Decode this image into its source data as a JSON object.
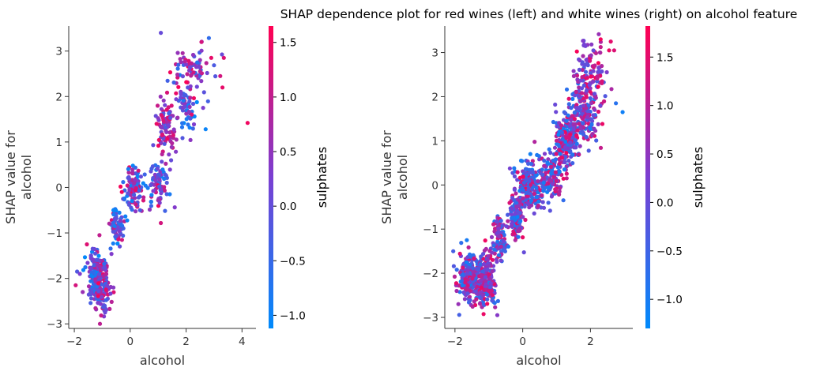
{
  "title": "SHAP dependence plot for red wines (left) and white wines (right) on alcohol feature",
  "colors": {
    "low": "#008afb",
    "mid": "#7a3fd2",
    "high": "#ff0052",
    "axis": "#333333"
  },
  "chart_data": [
    {
      "type": "scatter",
      "name": "red-wines",
      "xlabel": "alcohol",
      "ylabel": "SHAP value for\nalcohol",
      "xlim": [
        -2.2,
        4.5
      ],
      "ylim": [
        -3.1,
        3.55
      ],
      "xticks": [
        -2,
        0,
        2,
        4
      ],
      "yticks": [
        -3,
        -2,
        -1,
        0,
        1,
        2,
        3
      ],
      "colorbar": {
        "label": "sulphates",
        "range": [
          -1.12,
          1.65
        ],
        "ticks": [
          -1.0,
          -0.5,
          0.0,
          0.5,
          1.0,
          1.5
        ]
      },
      "clusters": [
        {
          "x": -1.25,
          "xs": 0.13,
          "y": -2.0,
          "ys": 0.32,
          "n": 150,
          "cMin": -1.1,
          "cMax": 1.1
        },
        {
          "x": -0.95,
          "xs": 0.12,
          "y": -2.15,
          "ys": 0.3,
          "n": 90,
          "cMin": -0.6,
          "cMax": 1.6
        },
        {
          "x": -0.5,
          "xs": 0.12,
          "y": -0.85,
          "ys": 0.22,
          "n": 70,
          "cMin": -1.1,
          "cMax": 1.3
        },
        {
          "x": 0.1,
          "xs": 0.18,
          "y": 0.0,
          "ys": 0.25,
          "n": 110,
          "cMin": -1.1,
          "cMax": 1.6
        },
        {
          "x": 0.95,
          "xs": 0.22,
          "y": 0.15,
          "ys": 0.28,
          "n": 80,
          "cMin": -1.1,
          "cMax": 1.6
        },
        {
          "x": 1.3,
          "xs": 0.18,
          "y": 1.35,
          "ys": 0.3,
          "n": 90,
          "cMin": -0.3,
          "cMax": 1.6
        },
        {
          "x": 2.0,
          "xs": 0.2,
          "y": 1.75,
          "ys": 0.25,
          "n": 50,
          "cMin": -1.1,
          "cMax": 1.0
        },
        {
          "x": 2.2,
          "xs": 0.35,
          "y": 2.5,
          "ys": 0.35,
          "n": 80,
          "cMin": -0.8,
          "cMax": 1.6
        }
      ],
      "points": [
        [
          -1.9,
          -1.85,
          -0.2
        ],
        [
          -1.8,
          -1.9,
          0.3
        ],
        [
          -1.95,
          -2.15,
          1.2
        ],
        [
          -1.7,
          -2.3,
          0.6
        ],
        [
          -1.55,
          -1.25,
          1.3
        ],
        [
          -1.1,
          -1.05,
          1.0
        ],
        [
          -0.9,
          -2.75,
          0.1
        ],
        [
          -0.6,
          -2.2,
          0.4
        ],
        [
          4.2,
          1.42,
          1.5
        ],
        [
          3.35,
          2.85,
          1.3
        ],
        [
          3.3,
          2.2,
          1.4
        ],
        [
          2.9,
          2.85,
          1.4
        ],
        [
          2.55,
          3.2,
          1.2
        ],
        [
          2.7,
          1.28,
          -1.0
        ],
        [
          -0.3,
          -0.1,
          1.5
        ],
        [
          -0.6,
          -0.5,
          -1.0
        ]
      ]
    },
    {
      "type": "scatter",
      "name": "white-wines",
      "xlabel": "alcohol",
      "ylabel": "SHAP value for\nalcohol",
      "xlim": [
        -2.3,
        3.25
      ],
      "ylim": [
        -3.25,
        3.6
      ],
      "xticks": [
        -2,
        0,
        2
      ],
      "yticks": [
        -3,
        -2,
        -1,
        0,
        1,
        2,
        3
      ],
      "colorbar": {
        "label": "sulphates",
        "range": [
          -1.3,
          1.82
        ],
        "ticks": [
          -1.0,
          -0.5,
          0.0,
          0.5,
          1.0,
          1.5
        ]
      },
      "clusters": [
        {
          "x": -1.55,
          "xs": 0.18,
          "y": -2.1,
          "ys": 0.28,
          "n": 280,
          "cMin": -1.2,
          "cMax": 1.6
        },
        {
          "x": -1.05,
          "xs": 0.12,
          "y": -2.2,
          "ys": 0.3,
          "n": 160,
          "cMin": -0.9,
          "cMax": 1.7
        },
        {
          "x": -0.7,
          "xs": 0.1,
          "y": -1.25,
          "ys": 0.25,
          "n": 90,
          "cMin": -1.2,
          "cMax": 1.6
        },
        {
          "x": -0.2,
          "xs": 0.12,
          "y": -0.75,
          "ys": 0.22,
          "n": 120,
          "cMin": -1.2,
          "cMax": 1.6
        },
        {
          "x": 0.15,
          "xs": 0.22,
          "y": -0.05,
          "ys": 0.28,
          "n": 200,
          "cMin": -1.2,
          "cMax": 1.7
        },
        {
          "x": 0.8,
          "xs": 0.18,
          "y": 0.15,
          "ys": 0.25,
          "n": 130,
          "cMin": -1.2,
          "cMax": 1.7
        },
        {
          "x": 1.25,
          "xs": 0.18,
          "y": 0.95,
          "ys": 0.32,
          "n": 170,
          "cMin": -1.2,
          "cMax": 1.7
        },
        {
          "x": 1.8,
          "xs": 0.22,
          "y": 1.55,
          "ys": 0.3,
          "n": 170,
          "cMin": -1.2,
          "cMax": 1.6
        },
        {
          "x": 2.0,
          "xs": 0.25,
          "y": 2.55,
          "ys": 0.35,
          "n": 110,
          "cMin": -0.4,
          "cMax": 1.8
        }
      ],
      "points": [
        [
          -2.05,
          -1.5,
          -0.4
        ],
        [
          -1.65,
          -1.25,
          -1.0
        ],
        [
          -1.9,
          -2.7,
          0.6
        ],
        [
          -1.95,
          -2.4,
          0.7
        ],
        [
          -0.75,
          -2.95,
          0.4
        ],
        [
          2.95,
          1.65,
          -1.1
        ],
        [
          2.75,
          1.85,
          -0.8
        ],
        [
          2.6,
          3.25,
          1.5
        ],
        [
          2.55,
          3.05,
          1.6
        ],
        [
          2.3,
          3.3,
          1.7
        ],
        [
          2.7,
          3.05,
          1.4
        ],
        [
          -0.05,
          0.55,
          -1.0
        ]
      ]
    }
  ]
}
